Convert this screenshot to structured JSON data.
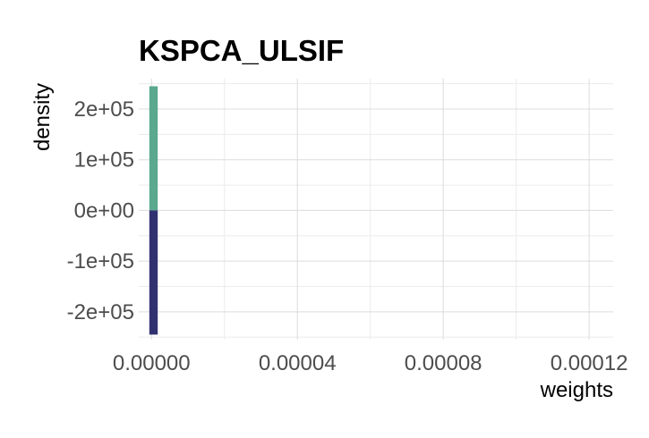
{
  "chart_data": {
    "type": "bar",
    "title": "KSPCA_ULSIF",
    "xlabel": "weights",
    "ylabel": "density",
    "xlim": [
      -3.5e-06,
      0.0001266
    ],
    "ylim": [
      -255000,
      260000
    ],
    "x_ticks": [
      0,
      4e-05,
      8e-05,
      0.00012
    ],
    "x_tick_labels": [
      "0.00000",
      "0.00004",
      "0.00008",
      "0.00012"
    ],
    "y_ticks": [
      -200000,
      -100000,
      0,
      100000,
      200000
    ],
    "y_tick_labels": [
      "-2e+05",
      "-1e+05",
      "0e+00",
      "1e+05",
      "2e+05"
    ],
    "grid": true,
    "legend": "none",
    "series": [
      {
        "color": "#5aa88e",
        "bars": [
          {
            "x0": -6e-07,
            "x1": 1.7e-06,
            "value": 245000
          }
        ]
      },
      {
        "color": "#323170",
        "bars": [
          {
            "x0": -6e-07,
            "x1": 1.7e-06,
            "value": -245000
          }
        ]
      }
    ]
  }
}
